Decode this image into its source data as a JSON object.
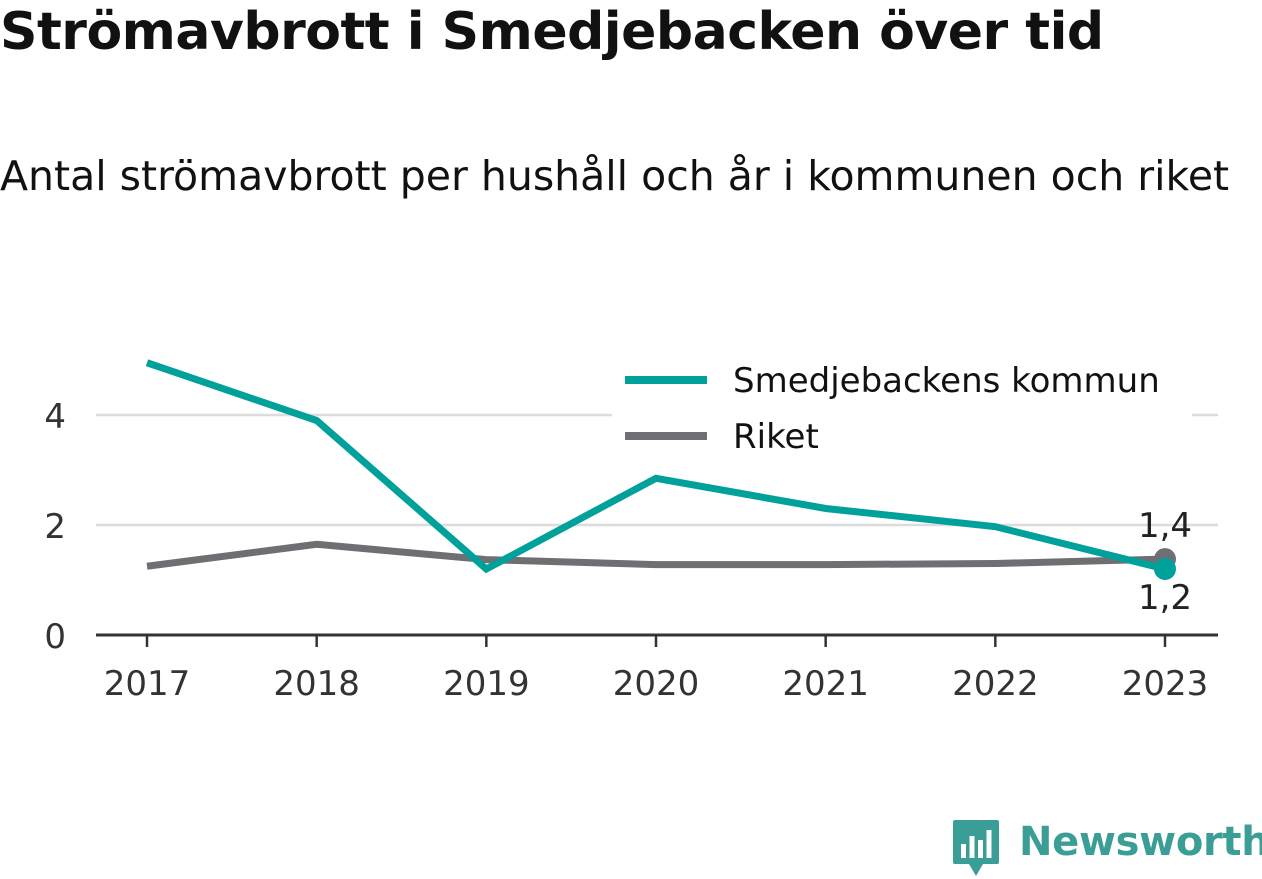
{
  "header": {
    "title": "Strömavbrott i Smedjebacken över tid",
    "subtitle": "Antal strömavbrott per hushåll och år i kommunen och riket"
  },
  "chart_data": {
    "type": "line",
    "x": [
      "2017",
      "2018",
      "2019",
      "2020",
      "2021",
      "2022",
      "2023"
    ],
    "series": [
      {
        "name": "Smedjebackens kommun",
        "color": "#00a19a",
        "values": [
          4.95,
          3.9,
          1.2,
          2.85,
          2.3,
          1.97,
          1.2
        ],
        "end_label": "1,2"
      },
      {
        "name": "Riket",
        "color": "#6e6e73",
        "values": [
          1.25,
          1.65,
          1.37,
          1.28,
          1.28,
          1.3,
          1.38
        ],
        "end_label": "1,4"
      }
    ],
    "y_ticks": [
      "0",
      "2",
      "4"
    ],
    "ylim": [
      0,
      5
    ],
    "grid": true,
    "legend_position": "top-right"
  },
  "brand": {
    "name": "Newsworthy",
    "icon": "newsworthy-logo-icon",
    "color": "#3a9e97"
  }
}
